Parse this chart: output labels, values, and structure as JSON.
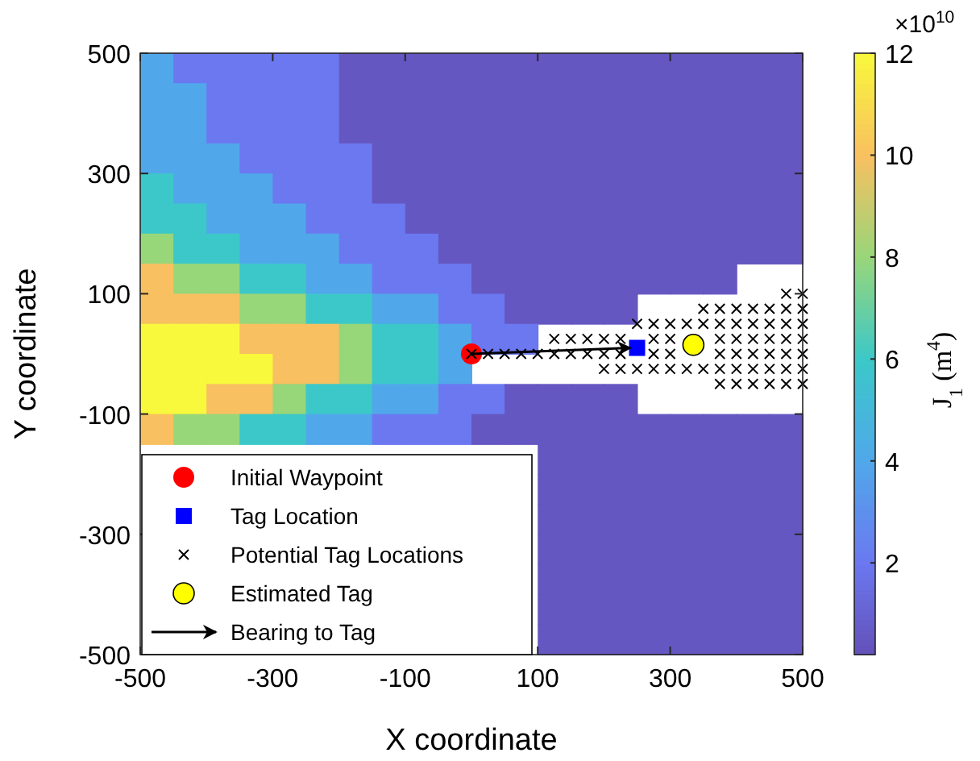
{
  "chart_data": {
    "type": "heatmap",
    "xlabel": "X coordinate",
    "ylabel": "Y coordinate",
    "clabel": "J$_{1}$ (m$^{4}$)",
    "annotations": [
      "×10$^{10}$"
    ],
    "xlim": [
      -500,
      500
    ],
    "xticks": [
      -500,
      -300,
      -100,
      100,
      300,
      500
    ],
    "ylim": [
      -500,
      500
    ],
    "yticks": [
      -500,
      -300,
      -100,
      100,
      300,
      500
    ],
    "clim": [
      0.2,
      12
    ],
    "cticks": [
      2,
      4,
      6,
      8,
      10,
      12
    ],
    "grid": false,
    "legend": "bottom left",
    "cells": [
      [
        4,
        2,
        2,
        2,
        2,
        2,
        0.5,
        0.5,
        0.5,
        0.5,
        0.5,
        0.5,
        0.5,
        0.5,
        0.5,
        0.5,
        0.5,
        0.5,
        0.5,
        0.5
      ],
      [
        4,
        4,
        2,
        2,
        2,
        2,
        0.5,
        0.5,
        0.5,
        0.5,
        0.5,
        0.5,
        0.5,
        0.5,
        0.5,
        0.5,
        0.5,
        0.5,
        0.5,
        0.5
      ],
      [
        4,
        4,
        2,
        2,
        2,
        2,
        0.5,
        0.5,
        0.5,
        0.5,
        0.5,
        0.5,
        0.5,
        0.5,
        0.5,
        0.5,
        0.5,
        0.5,
        0.5,
        0.5
      ],
      [
        4,
        4,
        4,
        2,
        2,
        2,
        2,
        0.5,
        0.5,
        0.5,
        0.5,
        0.5,
        0.5,
        0.5,
        0.5,
        0.5,
        0.5,
        0.5,
        0.5,
        0.5
      ],
      [
        6,
        4,
        4,
        4,
        2,
        2,
        2,
        0.5,
        0.5,
        0.5,
        0.5,
        0.5,
        0.5,
        0.5,
        0.5,
        0.5,
        0.5,
        0.5,
        0.5,
        0.5
      ],
      [
        6,
        6,
        4,
        4,
        4,
        2,
        2,
        2,
        0.5,
        0.5,
        0.5,
        0.5,
        0.5,
        0.5,
        0.5,
        0.5,
        0.5,
        0.5,
        0.5,
        0.5
      ],
      [
        8,
        6,
        6,
        4,
        4,
        4,
        2,
        2,
        2,
        0.5,
        0.5,
        0.5,
        0.5,
        0.5,
        0.5,
        0.5,
        0.5,
        0.5,
        0.5,
        0.5
      ],
      [
        10,
        8,
        8,
        6,
        6,
        4,
        4,
        2,
        2,
        2,
        0.5,
        0.5,
        0.5,
        0.5,
        0.5,
        0.5,
        0.5,
        0.5,
        null,
        null
      ],
      [
        10,
        10,
        10,
        8,
        8,
        6,
        6,
        4,
        4,
        2,
        2,
        0.5,
        0.5,
        0.5,
        0.5,
        null,
        null,
        null,
        null,
        null
      ],
      [
        12,
        12,
        12,
        10,
        10,
        10,
        8,
        6,
        6,
        4,
        2,
        2,
        null,
        null,
        null,
        null,
        null,
        null,
        null,
        null
      ],
      [
        12,
        12,
        12,
        12,
        10,
        10,
        8,
        6,
        6,
        4,
        null,
        null,
        null,
        null,
        null,
        null,
        null,
        null,
        null,
        null
      ],
      [
        12,
        12,
        10,
        10,
        8,
        6,
        6,
        4,
        4,
        2,
        2,
        0.5,
        0.5,
        0.5,
        0.5,
        null,
        null,
        null,
        null,
        null
      ],
      [
        10,
        8,
        8,
        6,
        6,
        4,
        4,
        2,
        2,
        2,
        0.5,
        0.5,
        0.5,
        0.5,
        0.5,
        0.5,
        0.5,
        0.5,
        0.5,
        0.5
      ],
      [
        null,
        null,
        null,
        null,
        null,
        null,
        null,
        null,
        null,
        null,
        null,
        null,
        0.5,
        0.5,
        0.5,
        0.5,
        0.5,
        0.5,
        0.5,
        0.5
      ],
      [
        null,
        null,
        null,
        null,
        null,
        null,
        null,
        null,
        null,
        null,
        null,
        null,
        0.5,
        0.5,
        0.5,
        0.5,
        0.5,
        0.5,
        0.5,
        0.5
      ],
      [
        null,
        null,
        null,
        null,
        null,
        null,
        null,
        null,
        null,
        null,
        null,
        null,
        0.5,
        0.5,
        0.5,
        0.5,
        0.5,
        0.5,
        0.5,
        0.5
      ],
      [
        null,
        null,
        null,
        null,
        null,
        null,
        null,
        null,
        null,
        null,
        null,
        null,
        0.5,
        0.5,
        0.5,
        0.5,
        0.5,
        0.5,
        0.5,
        0.5
      ],
      [
        null,
        null,
        null,
        null,
        null,
        null,
        null,
        null,
        null,
        null,
        null,
        null,
        0.5,
        0.5,
        0.5,
        0.5,
        0.5,
        0.5,
        0.5,
        0.5
      ],
      [
        null,
        null,
        null,
        null,
        null,
        null,
        null,
        null,
        null,
        null,
        null,
        null,
        0.5,
        0.5,
        0.5,
        0.5,
        0.5,
        0.5,
        0.5,
        0.5
      ],
      [
        null,
        null,
        null,
        null,
        null,
        null,
        null,
        null,
        null,
        null,
        null,
        null,
        0.5,
        0.5,
        0.5,
        0.5,
        0.5,
        0.5,
        0.5,
        0.5
      ]
    ],
    "series": [
      {
        "name": "Initial Waypoint",
        "type": "scatter",
        "marker": "circle",
        "color": "#ff0000",
        "x": [
          0
        ],
        "values": [
          0
        ]
      },
      {
        "name": "Tag Location",
        "type": "scatter",
        "marker": "square",
        "color": "#0000ff",
        "x": [
          250
        ],
        "values": [
          10
        ]
      },
      {
        "name": "Potential Tag Locations",
        "type": "scatter",
        "marker": "cross",
        "color": "#000000",
        "x": [
          0,
          25,
          50,
          75,
          100,
          125,
          150,
          175,
          200,
          225,
          275,
          300,
          375,
          400,
          425,
          450,
          475,
          500,
          125,
          150,
          175,
          200,
          225,
          275,
          300,
          375,
          400,
          425,
          450,
          475,
          500,
          250,
          275,
          300,
          325,
          350,
          375,
          400,
          425,
          450,
          475,
          500,
          350,
          375,
          400,
          425,
          450,
          475,
          500,
          475,
          500,
          200,
          225,
          250,
          275,
          300,
          325,
          350,
          375,
          400,
          425,
          450,
          475,
          500,
          375,
          400,
          425,
          450,
          475,
          500
        ],
        "values": [
          0,
          0,
          0,
          0,
          0,
          0,
          0,
          0,
          0,
          0,
          0,
          0,
          0,
          0,
          0,
          0,
          0,
          0,
          25,
          25,
          25,
          25,
          25,
          25,
          25,
          25,
          25,
          25,
          25,
          25,
          25,
          50,
          50,
          50,
          50,
          50,
          50,
          50,
          50,
          50,
          50,
          50,
          75,
          75,
          75,
          75,
          75,
          75,
          75,
          100,
          100,
          -25,
          -25,
          -25,
          -25,
          -25,
          -25,
          -25,
          -25,
          -25,
          -25,
          -25,
          -25,
          -25,
          -50,
          -50,
          -50,
          -50,
          -50,
          -50
        ]
      },
      {
        "name": "Estimated Tag",
        "type": "scatter",
        "marker": "circle",
        "color": "#ffff00",
        "x": [
          335
        ],
        "values": [
          15
        ]
      },
      {
        "name": "Bearing to Tag",
        "type": "line",
        "line_style": "solid",
        "color": "#000000",
        "x": [
          0,
          240
        ],
        "values": [
          0,
          10
        ]
      }
    ]
  }
}
